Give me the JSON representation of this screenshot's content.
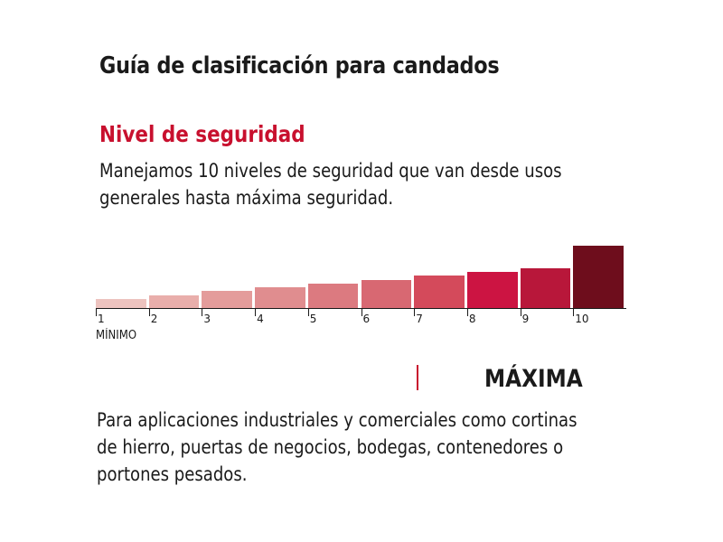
{
  "title": "Guía de clasificación para candados",
  "section": {
    "heading": "Nivel de seguridad",
    "intro_line1": "Manejamos 10 niveles de seguridad que van desde usos",
    "intro_line2": "generales hasta máxima seguridad."
  },
  "scale": {
    "levels": [
      {
        "label": "1",
        "level": 1,
        "color": "#edc3bf"
      },
      {
        "label": "2",
        "level": 2,
        "color": "#e9aeab"
      },
      {
        "label": "3",
        "level": 3,
        "color": "#e49c9b"
      },
      {
        "label": "4",
        "level": 4,
        "color": "#e08d8f"
      },
      {
        "label": "5",
        "level": 5,
        "color": "#dc7a80"
      },
      {
        "label": "6",
        "level": 6,
        "color": "#d86872"
      },
      {
        "label": "7",
        "level": 7,
        "color": "#d44a5b"
      },
      {
        "label": "8",
        "level": 8,
        "color": "#cc1442"
      },
      {
        "label": "9",
        "level": 9,
        "color": "#b8173a"
      },
      {
        "label": "10",
        "level": 10,
        "color": "#6e0d1c"
      }
    ],
    "min_label": "MÍNIMO",
    "accent_color": "#c8102e"
  },
  "selected_level": {
    "name": "MÁXIMA",
    "desc_line1": "Para aplicaciones industriales y comerciales como cortinas",
    "desc_line2": "de hierro, puertas de negocios, bodegas, contenedores o",
    "desc_line3": "portones pesados."
  }
}
